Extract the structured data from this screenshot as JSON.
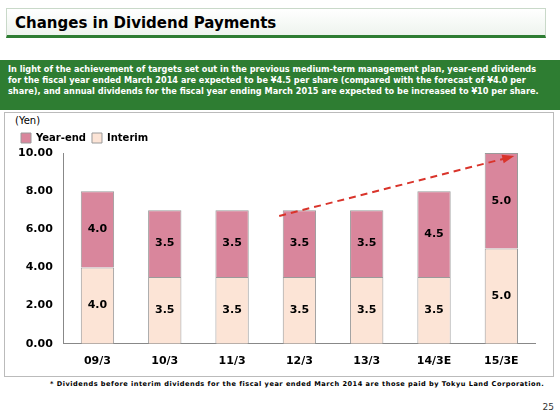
{
  "header": {
    "title": "Changes in Dividend Payments"
  },
  "summary": "In light of the achievement of targets set out in the previous medium-term management plan, year-end dividends for the fiscal year ended March 2014 are expected to be ¥4.5 per share (compared with the forecast of ¥4.0 per share), and annual dividends for the fiscal year ending March 2015 are expected to be increased to ¥10 per share.",
  "footnote": "* Dividends before interim dividends for the fiscal year ended March 2014 are those paid by Tokyu Land Corporation.",
  "page_number": "25",
  "chart_data": {
    "type": "bar",
    "stacked": true,
    "y_label": "(Yen)",
    "categories": [
      "09/3",
      "10/3",
      "11/3",
      "12/3",
      "13/3",
      "14/3E",
      "15/3E"
    ],
    "series": [
      {
        "name": "Interim",
        "color": "#fce4d6",
        "values": [
          4.0,
          3.5,
          3.5,
          3.5,
          3.5,
          3.5,
          5.0
        ],
        "value_labels": [
          "4.0",
          "3.5",
          "3.5",
          "3.5",
          "3.5",
          "3.5",
          "5.0"
        ]
      },
      {
        "name": "Year-end",
        "color": "#d9869c",
        "values": [
          4.0,
          3.5,
          3.5,
          3.5,
          3.5,
          4.5,
          5.0
        ],
        "value_labels": [
          "4.0",
          "3.5",
          "3.5",
          "3.5",
          "3.5",
          "4.5",
          "5.0"
        ]
      }
    ],
    "ylim": [
      0,
      10
    ],
    "yticks": [
      {
        "value": 0,
        "label": "0.00"
      },
      {
        "value": 2,
        "label": "2.00"
      },
      {
        "value": 4,
        "label": "4.00"
      },
      {
        "value": 6,
        "label": "6.00"
      },
      {
        "value": 8,
        "label": "8.00"
      },
      {
        "value": 10,
        "label": "10.00"
      }
    ],
    "grid": false,
    "data_labels": true,
    "legend": "top-left"
  }
}
